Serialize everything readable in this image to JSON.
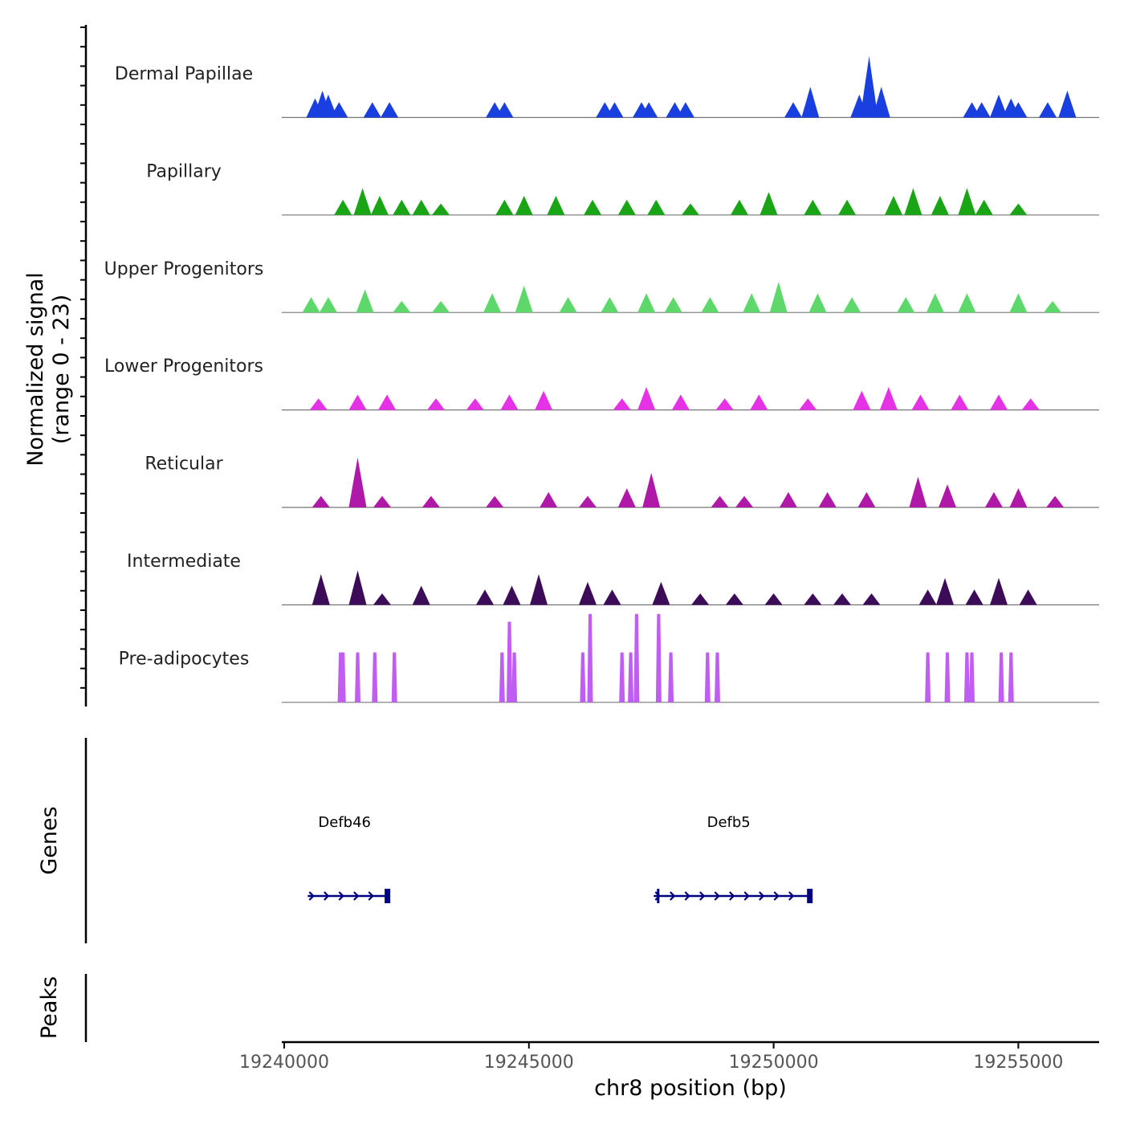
{
  "chart_data": {
    "type": "area",
    "chromosome": "chr8",
    "xlabel": "chr8 position (bp)",
    "ylabel": "Normalized signal",
    "ylabel_range": "(range 0 - 23)",
    "xlim": [
      19239950,
      19256650
    ],
    "x_ticks": [
      19240000,
      19245000,
      19250000,
      19255000
    ],
    "x_tick_labels": [
      "19240000",
      "19245000",
      "19250000",
      "19255000"
    ],
    "ylim": [
      0,
      23
    ],
    "coverage_tracks": [
      {
        "name": "Dermal Papillae",
        "color": "#1a3fe0",
        "peaks": [
          [
            19240630,
            5
          ],
          [
            19240780,
            7
          ],
          [
            19240900,
            6
          ],
          [
            19241120,
            4
          ],
          [
            19241800,
            4
          ],
          [
            19242150,
            4
          ],
          [
            19244300,
            4
          ],
          [
            19244500,
            4
          ],
          [
            19246550,
            4
          ],
          [
            19246750,
            4
          ],
          [
            19247300,
            4
          ],
          [
            19247450,
            4
          ],
          [
            19247980,
            4
          ],
          [
            19248200,
            4
          ],
          [
            19250400,
            4
          ],
          [
            19250750,
            8
          ],
          [
            19251750,
            6
          ],
          [
            19251950,
            16
          ],
          [
            19252200,
            8
          ],
          [
            19254050,
            4
          ],
          [
            19254250,
            4
          ],
          [
            19254600,
            6
          ],
          [
            19254850,
            5
          ],
          [
            19255000,
            4
          ],
          [
            19255600,
            4
          ],
          [
            19256000,
            7
          ]
        ]
      },
      {
        "name": "Papillary",
        "color": "#19a516",
        "peaks": [
          [
            19241200,
            4
          ],
          [
            19241600,
            7
          ],
          [
            19241950,
            5
          ],
          [
            19242400,
            4
          ],
          [
            19242800,
            4
          ],
          [
            19243200,
            3
          ],
          [
            19244500,
            4
          ],
          [
            19244900,
            5
          ],
          [
            19245550,
            5
          ],
          [
            19246300,
            4
          ],
          [
            19247000,
            4
          ],
          [
            19247600,
            4
          ],
          [
            19248300,
            3
          ],
          [
            19249300,
            4
          ],
          [
            19249900,
            6
          ],
          [
            19250800,
            4
          ],
          [
            19251500,
            4
          ],
          [
            19252450,
            5
          ],
          [
            19252850,
            7
          ],
          [
            19253400,
            5
          ],
          [
            19253950,
            7
          ],
          [
            19254300,
            4
          ],
          [
            19255000,
            3
          ]
        ]
      },
      {
        "name": "Upper Progenitors",
        "color": "#5ed86a",
        "peaks": [
          [
            19240550,
            4
          ],
          [
            19240900,
            4
          ],
          [
            19241650,
            6
          ],
          [
            19242400,
            3
          ],
          [
            19243200,
            3
          ],
          [
            19244250,
            5
          ],
          [
            19244900,
            7
          ],
          [
            19245800,
            4
          ],
          [
            19246650,
            4
          ],
          [
            19247400,
            5
          ],
          [
            19247950,
            4
          ],
          [
            19248700,
            4
          ],
          [
            19249550,
            5
          ],
          [
            19250100,
            8
          ],
          [
            19250900,
            5
          ],
          [
            19251600,
            4
          ],
          [
            19252700,
            4
          ],
          [
            19253300,
            5
          ],
          [
            19253950,
            5
          ],
          [
            19255000,
            5
          ],
          [
            19255700,
            3
          ]
        ]
      },
      {
        "name": "Lower Progenitors",
        "color": "#e632e6",
        "peaks": [
          [
            19240700,
            3
          ],
          [
            19241500,
            4
          ],
          [
            19242100,
            4
          ],
          [
            19243100,
            3
          ],
          [
            19243900,
            3
          ],
          [
            19244600,
            4
          ],
          [
            19245300,
            5
          ],
          [
            19246900,
            3
          ],
          [
            19247400,
            6
          ],
          [
            19248100,
            4
          ],
          [
            19249000,
            3
          ],
          [
            19249700,
            4
          ],
          [
            19250700,
            3
          ],
          [
            19251800,
            5
          ],
          [
            19252350,
            6
          ],
          [
            19253000,
            4
          ],
          [
            19253800,
            4
          ],
          [
            19254600,
            4
          ],
          [
            19255250,
            3
          ]
        ]
      },
      {
        "name": "Reticular",
        "color": "#b018a8",
        "peaks": [
          [
            19240750,
            3
          ],
          [
            19241500,
            13
          ],
          [
            19242000,
            3
          ],
          [
            19243000,
            3
          ],
          [
            19244300,
            3
          ],
          [
            19245400,
            4
          ],
          [
            19246200,
            3
          ],
          [
            19247000,
            5
          ],
          [
            19247500,
            9
          ],
          [
            19248900,
            3
          ],
          [
            19249400,
            3
          ],
          [
            19250300,
            4
          ],
          [
            19251100,
            4
          ],
          [
            19251900,
            4
          ],
          [
            19252950,
            8
          ],
          [
            19253550,
            6
          ],
          [
            19254500,
            4
          ],
          [
            19255000,
            5
          ],
          [
            19255750,
            3
          ]
        ]
      },
      {
        "name": "Intermediate",
        "color": "#3d0c58",
        "peaks": [
          [
            19240750,
            8
          ],
          [
            19241500,
            9
          ],
          [
            19242000,
            3
          ],
          [
            19242800,
            5
          ],
          [
            19244100,
            4
          ],
          [
            19244650,
            5
          ],
          [
            19245200,
            8
          ],
          [
            19246200,
            6
          ],
          [
            19246700,
            4
          ],
          [
            19247700,
            6
          ],
          [
            19248500,
            3
          ],
          [
            19249200,
            3
          ],
          [
            19250000,
            3
          ],
          [
            19250800,
            3
          ],
          [
            19251400,
            3
          ],
          [
            19252000,
            3
          ],
          [
            19253150,
            4
          ],
          [
            19253500,
            7
          ],
          [
            19254100,
            4
          ],
          [
            19254600,
            7
          ],
          [
            19255200,
            4
          ]
        ]
      },
      {
        "name": "Pre-adipocytes",
        "color": "#c05df2",
        "peaks": [
          [
            19241150,
            13
          ],
          [
            19241200,
            13
          ],
          [
            19241500,
            13
          ],
          [
            19241850,
            13
          ],
          [
            19242250,
            13
          ],
          [
            19244450,
            13
          ],
          [
            19244600,
            21
          ],
          [
            19244700,
            13
          ],
          [
            19246100,
            13
          ],
          [
            19246250,
            23
          ],
          [
            19246900,
            13
          ],
          [
            19247080,
            13
          ],
          [
            19247200,
            23
          ],
          [
            19247650,
            23
          ],
          [
            19247900,
            13
          ],
          [
            19248650,
            13
          ],
          [
            19248850,
            13
          ],
          [
            19253150,
            13
          ],
          [
            19253550,
            13
          ],
          [
            19253950,
            13
          ],
          [
            19254050,
            13
          ],
          [
            19254650,
            13
          ],
          [
            19254850,
            13
          ]
        ]
      }
    ],
    "genes": [
      {
        "name": "Defb46",
        "start": 19240480,
        "end": 19242150,
        "strand": "+"
      },
      {
        "name": "Defb5",
        "start": 19247550,
        "end": 19250780,
        "strand": "+"
      }
    ],
    "genes_label": "Genes",
    "peaks_label": "Peaks",
    "peaks": []
  }
}
